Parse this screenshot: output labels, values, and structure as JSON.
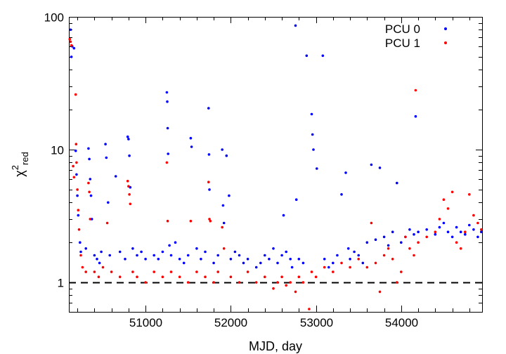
{
  "chart_data": {
    "type": "scatter",
    "title": "",
    "xlabel": "MJD, day",
    "ylabel_main": "χ",
    "ylabel_sup": "2",
    "ylabel_sub": "red",
    "xlim": [
      50100,
      54950
    ],
    "ylim": [
      0.6,
      100
    ],
    "yscale": "log",
    "grid": false,
    "legend_position": "top-right",
    "x_ticks": [
      51000,
      52000,
      53000,
      54000
    ],
    "x_tick_labels": [
      "51000",
      "52000",
      "53000",
      "54000"
    ],
    "y_ticks": [
      1,
      10,
      100
    ],
    "y_tick_labels": [
      "1",
      "10",
      "100"
    ],
    "reference_line": {
      "y": 1,
      "style": "dashed",
      "color": "#000000"
    },
    "series": [
      {
        "name": "PCU 0",
        "color": "#0000ff",
        "points": [
          [
            50120,
            80
          ],
          [
            50140,
            60
          ],
          [
            50160,
            58
          ],
          [
            50130,
            50
          ],
          [
            50180,
            9.8
          ],
          [
            50190,
            6.5
          ],
          [
            50200,
            4.5
          ],
          [
            50210,
            3.2
          ],
          [
            50230,
            2.0
          ],
          [
            50240,
            1.7
          ],
          [
            50300,
            1.8
          ],
          [
            50330,
            10.2
          ],
          [
            50340,
            8.5
          ],
          [
            50350,
            6.0
          ],
          [
            50360,
            4.5
          ],
          [
            50370,
            3.0
          ],
          [
            50400,
            1.6
          ],
          [
            50430,
            1.5
          ],
          [
            50460,
            1.4
          ],
          [
            50480,
            1.7
          ],
          [
            50530,
            11.0
          ],
          [
            50540,
            8.7
          ],
          [
            50560,
            4.0
          ],
          [
            50580,
            1.6
          ],
          [
            50650,
            6.3
          ],
          [
            50700,
            1.7
          ],
          [
            50760,
            1.5
          ],
          [
            50790,
            12.5
          ],
          [
            50800,
            12.0
          ],
          [
            50810,
            9.0
          ],
          [
            50820,
            5.2
          ],
          [
            50850,
            1.8
          ],
          [
            50900,
            1.6
          ],
          [
            50950,
            1.7
          ],
          [
            51000,
            1.5
          ],
          [
            51100,
            1.6
          ],
          [
            51150,
            1.5
          ],
          [
            51200,
            1.7
          ],
          [
            51250,
            27.0
          ],
          [
            51255,
            23.0
          ],
          [
            51260,
            14.5
          ],
          [
            51265,
            9.3
          ],
          [
            51280,
            1.9
          ],
          [
            51300,
            1.6
          ],
          [
            51350,
            2.0
          ],
          [
            51400,
            1.5
          ],
          [
            51450,
            1.4
          ],
          [
            51500,
            1.6
          ],
          [
            51530,
            12.2
          ],
          [
            51540,
            10.5
          ],
          [
            51600,
            1.8
          ],
          [
            51650,
            1.5
          ],
          [
            51700,
            1.7
          ],
          [
            51740,
            20.5
          ],
          [
            51745,
            9.2
          ],
          [
            51750,
            5.0
          ],
          [
            51800,
            1.4
          ],
          [
            51850,
            1.6
          ],
          [
            51900,
            10.0
          ],
          [
            51910,
            3.8
          ],
          [
            51920,
            2.8
          ],
          [
            51950,
            9.0
          ],
          [
            51980,
            4.5
          ],
          [
            52000,
            1.5
          ],
          [
            52050,
            1.7
          ],
          [
            52100,
            1.6
          ],
          [
            52150,
            1.4
          ],
          [
            52200,
            1.5
          ],
          [
            52300,
            1.3
          ],
          [
            52350,
            1.4
          ],
          [
            52400,
            1.6
          ],
          [
            52450,
            1.5
          ],
          [
            52500,
            1.8
          ],
          [
            52550,
            1.4
          ],
          [
            52600,
            1.6
          ],
          [
            52620,
            3.2
          ],
          [
            52650,
            1.7
          ],
          [
            52700,
            1.5
          ],
          [
            52720,
            1.3
          ],
          [
            52760,
            86.0
          ],
          [
            52770,
            4.2
          ],
          [
            52800,
            1.5
          ],
          [
            52850,
            1.4
          ],
          [
            52890,
            51.0
          ],
          [
            52950,
            18.5
          ],
          [
            52960,
            13.0
          ],
          [
            52970,
            10.0
          ],
          [
            53010,
            7.2
          ],
          [
            53080,
            51.0
          ],
          [
            53100,
            1.5
          ],
          [
            53150,
            1.3
          ],
          [
            53200,
            1.4
          ],
          [
            53250,
            1.6
          ],
          [
            53300,
            4.6
          ],
          [
            53350,
            6.7
          ],
          [
            53380,
            1.8
          ],
          [
            53400,
            1.5
          ],
          [
            53450,
            1.7
          ],
          [
            53500,
            1.6
          ],
          [
            53550,
            1.4
          ],
          [
            53600,
            2.0
          ],
          [
            53650,
            7.7
          ],
          [
            53700,
            2.1
          ],
          [
            53750,
            7.3
          ],
          [
            53800,
            2.2
          ],
          [
            53850,
            1.9
          ],
          [
            53900,
            2.4
          ],
          [
            53950,
            5.6
          ],
          [
            54000,
            2.0
          ],
          [
            54050,
            2.2
          ],
          [
            54100,
            2.5
          ],
          [
            54150,
            2.3
          ],
          [
            54170,
            17.8
          ],
          [
            54200,
            2.4
          ],
          [
            54300,
            2.5
          ],
          [
            54400,
            2.3
          ],
          [
            54450,
            2.6
          ],
          [
            54500,
            2.8
          ],
          [
            54550,
            2.4
          ],
          [
            54600,
            2.2
          ],
          [
            54650,
            2.6
          ],
          [
            54700,
            2.4
          ],
          [
            54750,
            2.3
          ],
          [
            54800,
            2.7
          ],
          [
            54850,
            2.5
          ],
          [
            54900,
            2.2
          ],
          [
            54940,
            2.4
          ]
        ]
      },
      {
        "name": "PCU 1",
        "color": "#ff0000",
        "points": [
          [
            50110,
            68
          ],
          [
            50120,
            65
          ],
          [
            50130,
            61
          ],
          [
            50150,
            7.5
          ],
          [
            50160,
            6.2
          ],
          [
            50180,
            26.0
          ],
          [
            50185,
            11.0
          ],
          [
            50190,
            8.0
          ],
          [
            50200,
            5.0
          ],
          [
            50210,
            3.5
          ],
          [
            50220,
            2.5
          ],
          [
            50240,
            1.6
          ],
          [
            50260,
            1.3
          ],
          [
            50300,
            1.2
          ],
          [
            50330,
            5.6
          ],
          [
            50340,
            4.8
          ],
          [
            50350,
            3.0
          ],
          [
            50400,
            1.2
          ],
          [
            50450,
            1.1
          ],
          [
            50500,
            1.3
          ],
          [
            50550,
            2.8
          ],
          [
            50600,
            1.2
          ],
          [
            50700,
            1.1
          ],
          [
            50790,
            5.8
          ],
          [
            50800,
            5.3
          ],
          [
            50810,
            4.6
          ],
          [
            50820,
            3.9
          ],
          [
            50850,
            1.2
          ],
          [
            50900,
            1.1
          ],
          [
            51000,
            1.0
          ],
          [
            51100,
            1.2
          ],
          [
            51200,
            1.1
          ],
          [
            51250,
            8.0
          ],
          [
            51260,
            2.9
          ],
          [
            51300,
            1.2
          ],
          [
            51400,
            1.1
          ],
          [
            51500,
            1.0
          ],
          [
            51530,
            2.9
          ],
          [
            51600,
            1.2
          ],
          [
            51700,
            1.1
          ],
          [
            51740,
            5.7
          ],
          [
            51750,
            3.0
          ],
          [
            51760,
            2.9
          ],
          [
            51800,
            1.0
          ],
          [
            51850,
            1.2
          ],
          [
            51900,
            2.6
          ],
          [
            51920,
            1.8
          ],
          [
            52000,
            1.1
          ],
          [
            52100,
            1.0
          ],
          [
            52200,
            1.2
          ],
          [
            52300,
            1.0
          ],
          [
            52400,
            1.1
          ],
          [
            52500,
            0.9
          ],
          [
            52550,
            1.0
          ],
          [
            52600,
            1.1
          ],
          [
            52650,
            0.95
          ],
          [
            52700,
            1.0
          ],
          [
            52760,
            0.85
          ],
          [
            52800,
            1.1
          ],
          [
            52850,
            1.0
          ],
          [
            52920,
            0.63
          ],
          [
            52950,
            1.2
          ],
          [
            53000,
            1.1
          ],
          [
            53100,
            1.3
          ],
          [
            53200,
            1.2
          ],
          [
            53300,
            1.4
          ],
          [
            53400,
            1.3
          ],
          [
            53500,
            1.5
          ],
          [
            53600,
            1.3
          ],
          [
            53650,
            2.8
          ],
          [
            53700,
            1.4
          ],
          [
            53750,
            0.85
          ],
          [
            53800,
            1.6
          ],
          [
            53850,
            1.8
          ],
          [
            53900,
            1.5
          ],
          [
            53950,
            1.0
          ],
          [
            54000,
            1.2
          ],
          [
            54050,
            2.2
          ],
          [
            54100,
            1.8
          ],
          [
            54150,
            1.6
          ],
          [
            54170,
            28.0
          ],
          [
            54200,
            2.0
          ],
          [
            54300,
            2.2
          ],
          [
            54400,
            2.4
          ],
          [
            54450,
            3.0
          ],
          [
            54500,
            4.2
          ],
          [
            54550,
            3.6
          ],
          [
            54600,
            4.8
          ],
          [
            54650,
            2.0
          ],
          [
            54700,
            1.8
          ],
          [
            54750,
            2.4
          ],
          [
            54800,
            4.6
          ],
          [
            54850,
            3.2
          ],
          [
            54900,
            2.8
          ],
          [
            54940,
            2.5
          ]
        ]
      }
    ]
  }
}
